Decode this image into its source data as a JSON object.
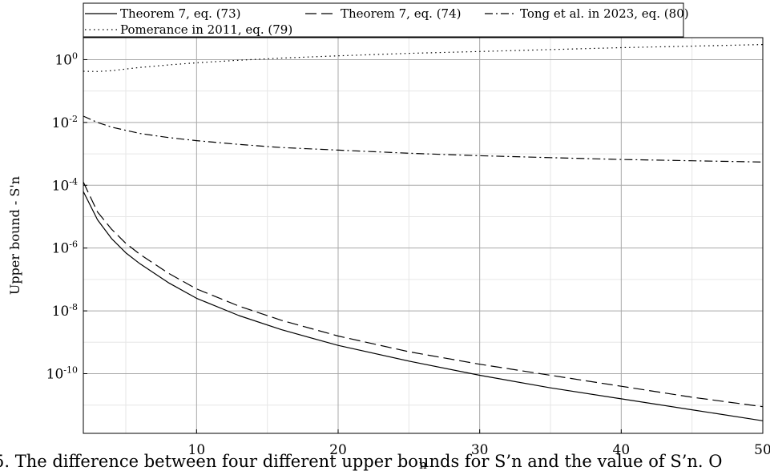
{
  "chart_data": {
    "type": "line",
    "xlabel": "n",
    "ylabel": "Upper bound - S'n",
    "xlim": [
      2,
      50
    ],
    "ylim_log10": [
      -11.9,
      0.7
    ],
    "y_scale": "log",
    "grid": true,
    "legend_position": "top",
    "x_ticks": [
      {
        "value": 10,
        "label": "10"
      },
      {
        "value": 20,
        "label": "20"
      },
      {
        "value": 30,
        "label": "30"
      },
      {
        "value": 40,
        "label": "40"
      },
      {
        "value": 50,
        "label": "50"
      }
    ],
    "y_ticks": [
      {
        "exp": 0,
        "base": "10",
        "sup": "0"
      },
      {
        "exp": -2,
        "base": "10",
        "sup": "-2"
      },
      {
        "exp": -4,
        "base": "10",
        "sup": "-4"
      },
      {
        "exp": -6,
        "base": "10",
        "sup": "-6"
      },
      {
        "exp": -8,
        "base": "10",
        "sup": "-8"
      },
      {
        "exp": -10,
        "base": "10",
        "sup": "-10"
      }
    ],
    "series": [
      {
        "name": "Theorem 7, eq. (73)",
        "style": "solid",
        "x": [
          2,
          3,
          4,
          5,
          6,
          8,
          10,
          13,
          16,
          20,
          25,
          30,
          35,
          40,
          45,
          50
        ],
        "log10_y": [
          -4.2,
          -5.1,
          -5.7,
          -6.15,
          -6.5,
          -7.1,
          -7.6,
          -8.15,
          -8.6,
          -9.1,
          -9.6,
          -10.05,
          -10.45,
          -10.8,
          -11.15,
          -11.5
        ]
      },
      {
        "name": "Theorem 7, eq. (74)",
        "style": "dashed",
        "x": [
          2,
          3,
          4,
          5,
          6,
          8,
          10,
          13,
          16,
          20,
          25,
          30,
          35,
          40,
          45,
          50
        ],
        "log10_y": [
          -3.9,
          -4.85,
          -5.4,
          -5.85,
          -6.2,
          -6.8,
          -7.3,
          -7.85,
          -8.3,
          -8.8,
          -9.3,
          -9.7,
          -10.05,
          -10.4,
          -10.75,
          -11.05
        ]
      },
      {
        "name": "Tong et al. in 2023, eq. (80)",
        "style": "dashdot",
        "x": [
          2,
          3,
          4,
          5,
          6,
          8,
          10,
          13,
          16,
          20,
          25,
          30,
          35,
          40,
          45,
          50
        ],
        "log10_y": [
          -1.8,
          -2.0,
          -2.15,
          -2.25,
          -2.35,
          -2.48,
          -2.58,
          -2.7,
          -2.8,
          -2.88,
          -2.98,
          -3.06,
          -3.12,
          -3.18,
          -3.22,
          -3.26
        ]
      },
      {
        "name": "Pomerance in 2011, eq. (79)",
        "style": "dotted",
        "x": [
          2,
          3,
          4,
          5,
          6,
          8,
          10,
          13,
          16,
          20,
          25,
          30,
          35,
          40,
          45,
          50
        ],
        "log10_y": [
          -0.37,
          -0.38,
          -0.35,
          -0.3,
          -0.25,
          -0.17,
          -0.1,
          -0.02,
          0.05,
          0.12,
          0.2,
          0.26,
          0.32,
          0.38,
          0.43,
          0.48
        ]
      }
    ]
  },
  "caption": "5. The difference between four different upper bounds for S’n and the value of S’n. O"
}
